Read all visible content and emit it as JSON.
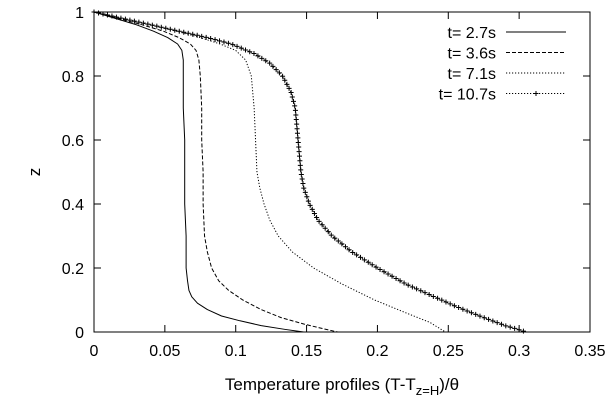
{
  "chart_data": {
    "type": "line",
    "title": "",
    "xlabel_parts": [
      "Temperature profiles (T-T",
      "z=H",
      ")/θ"
    ],
    "ylabel": "z",
    "xlim": [
      0,
      0.35
    ],
    "ylim": [
      0,
      1
    ],
    "xticks": [
      0,
      0.05,
      0.1,
      0.15,
      0.2,
      0.25,
      0.3,
      0.35
    ],
    "xtick_labels": [
      "0",
      "0.05",
      "0.1",
      "0.15",
      "0.2",
      "0.25",
      "0.3",
      "0.35"
    ],
    "yticks": [
      0,
      0.2,
      0.4,
      0.6,
      0.8,
      1
    ],
    "ytick_labels": [
      "0",
      "0.2",
      "0.4",
      "0.6",
      "0.8",
      "1"
    ],
    "grid": false,
    "legend_position": "top-right",
    "series": [
      {
        "name": "t= 2.7s",
        "style": "solid",
        "x": [
          0,
          0.015,
          0.03,
          0.042,
          0.052,
          0.059,
          0.062,
          0.063,
          0.063,
          0.063,
          0.064,
          0.064,
          0.064,
          0.065,
          0.065,
          0.066,
          0.067,
          0.069,
          0.073,
          0.08,
          0.09,
          0.103,
          0.118,
          0.135,
          0.148
        ],
        "y": [
          1,
          0.98,
          0.96,
          0.94,
          0.92,
          0.9,
          0.88,
          0.85,
          0.8,
          0.7,
          0.6,
          0.5,
          0.4,
          0.3,
          0.2,
          0.16,
          0.13,
          0.11,
          0.09,
          0.07,
          0.05,
          0.035,
          0.02,
          0.008,
          0
        ]
      },
      {
        "name": "t= 3.6s",
        "style": "dashed",
        "x": [
          0,
          0.017,
          0.034,
          0.049,
          0.06,
          0.068,
          0.072,
          0.074,
          0.075,
          0.076,
          0.076,
          0.077,
          0.077,
          0.078,
          0.08,
          0.083,
          0.088,
          0.095,
          0.105,
          0.118,
          0.132,
          0.148,
          0.162,
          0.172
        ],
        "y": [
          1,
          0.98,
          0.96,
          0.94,
          0.92,
          0.9,
          0.88,
          0.85,
          0.8,
          0.7,
          0.6,
          0.5,
          0.4,
          0.3,
          0.25,
          0.2,
          0.16,
          0.13,
          0.1,
          0.07,
          0.045,
          0.025,
          0.01,
          0
        ]
      },
      {
        "name": "t= 7.1s",
        "style": "dotted",
        "x": [
          0,
          0.02,
          0.04,
          0.058,
          0.075,
          0.089,
          0.1,
          0.107,
          0.111,
          0.113,
          0.114,
          0.115,
          0.117,
          0.12,
          0.124,
          0.13,
          0.14,
          0.155,
          0.175,
          0.198,
          0.22,
          0.237,
          0.248
        ],
        "y": [
          1,
          0.98,
          0.96,
          0.94,
          0.92,
          0.9,
          0.88,
          0.85,
          0.8,
          0.7,
          0.6,
          0.5,
          0.45,
          0.4,
          0.35,
          0.3,
          0.25,
          0.2,
          0.15,
          0.1,
          0.06,
          0.03,
          0
        ]
      },
      {
        "name": "t= 10.7s",
        "style": "dotted-plus",
        "x": [
          0,
          0.02,
          0.04,
          0.06,
          0.08,
          0.097,
          0.113,
          0.124,
          0.133,
          0.139,
          0.142,
          0.144,
          0.145,
          0.146,
          0.148,
          0.152,
          0.158,
          0.168,
          0.182,
          0.2,
          0.22,
          0.24,
          0.258,
          0.275,
          0.29,
          0.3,
          0.305
        ],
        "y": [
          1,
          0.98,
          0.96,
          0.94,
          0.92,
          0.9,
          0.87,
          0.84,
          0.8,
          0.75,
          0.7,
          0.6,
          0.55,
          0.5,
          0.45,
          0.4,
          0.35,
          0.3,
          0.25,
          0.2,
          0.15,
          0.11,
          0.075,
          0.045,
          0.02,
          0.007,
          0
        ]
      }
    ]
  }
}
